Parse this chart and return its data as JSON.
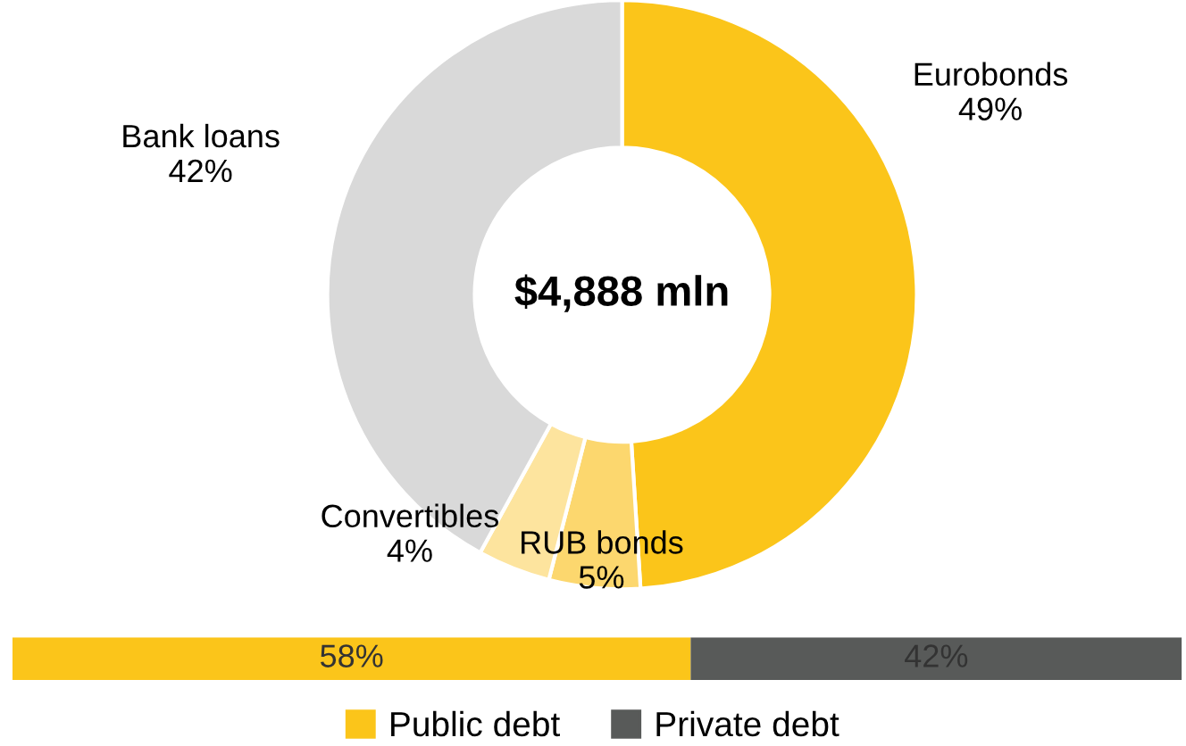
{
  "chart_data": [
    {
      "type": "donut",
      "categories": [
        "Eurobonds",
        "RUB bonds",
        "Convertibles",
        "Bank loans"
      ],
      "values": [
        49,
        5,
        4,
        42
      ],
      "value_labels": [
        "49%",
        "5%",
        "4%",
        "42%"
      ],
      "colors": [
        "#fbc51a",
        "#fcd76e",
        "#fde49e",
        "#d9d9d9"
      ],
      "annotations": [
        "$4,888 mln"
      ]
    },
    {
      "type": "bar",
      "orientation": "horizontal",
      "stacked": true,
      "categories": [
        null
      ],
      "legend": "bottom",
      "series": [
        {
          "name": "Public debt",
          "color": "#fbc51a",
          "values": [
            58
          ],
          "value_labels": [
            "58%"
          ]
        },
        {
          "name": "Private debt",
          "color": "#585a59",
          "values": [
            42
          ],
          "value_labels": [
            "42%"
          ]
        }
      ]
    }
  ]
}
